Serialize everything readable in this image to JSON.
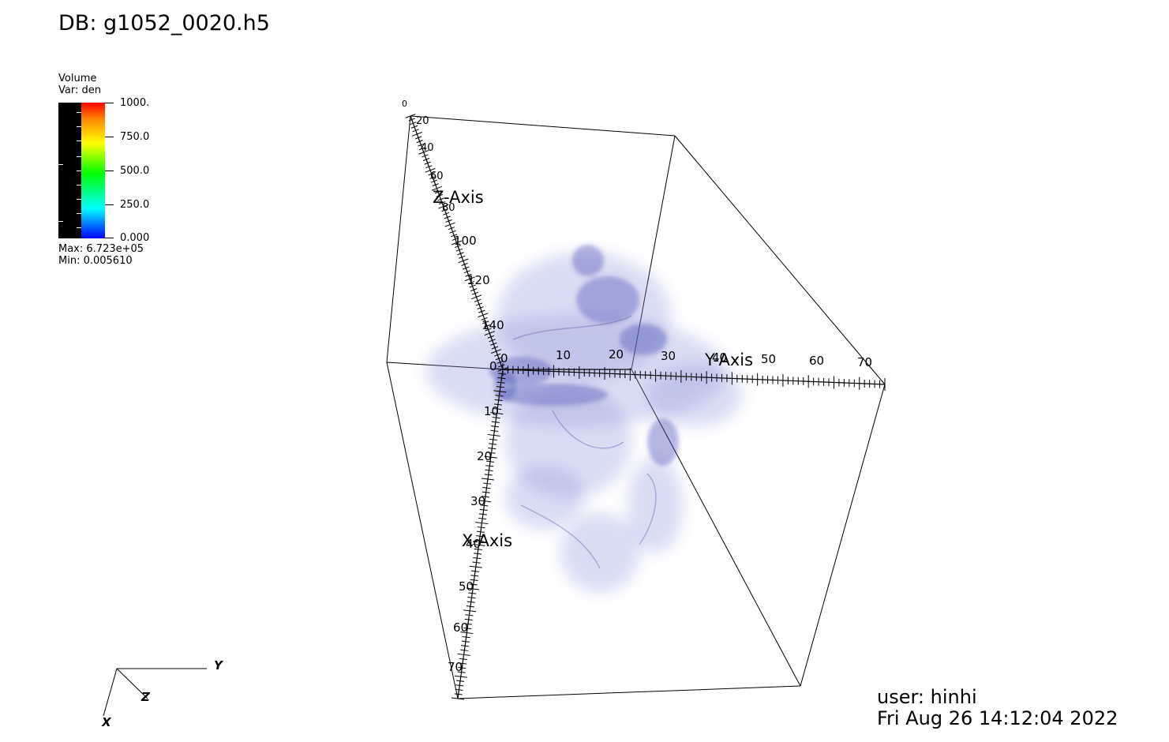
{
  "header": {
    "db_title": "DB: g1052_0020.h5"
  },
  "legend": {
    "title_line1": "Volume",
    "title_line2": "Var: den",
    "colorbar_labels": [
      "1000.",
      "750.0",
      "500.0",
      "250.0",
      "0.000"
    ],
    "max_text": "Max:  6.723e+05",
    "min_text": "Min:  0.005610",
    "colorbar_colors": [
      "#ff0000",
      "#ff8800",
      "#ffff00",
      "#00ff00",
      "#00ffff",
      "#0000ff"
    ]
  },
  "plot": {
    "x_axis_title": "X-Axis",
    "y_axis_title": "Y-Axis",
    "z_axis_title": "Z-Axis",
    "x_ticks": [
      "0",
      "10",
      "20",
      "30",
      "40",
      "50",
      "60",
      "70"
    ],
    "y_ticks": [
      "0",
      "10",
      "20",
      "30",
      "40",
      "50",
      "60",
      "70"
    ],
    "z_ticks": [
      "0",
      "20",
      "40",
      "60",
      "80",
      "100",
      "120",
      "140"
    ],
    "corner_label": "0",
    "volume_color": "#5b64c2"
  },
  "triad": {
    "x": "X",
    "y": "Y",
    "z": "Z"
  },
  "footer": {
    "user": "user: hinhi",
    "timestamp": "Fri Aug 26 14:12:04 2022"
  }
}
